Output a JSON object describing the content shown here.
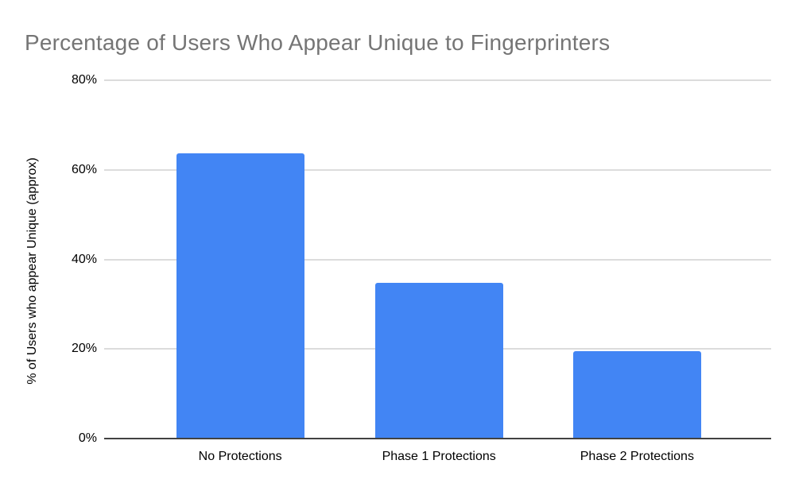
{
  "chart_data": {
    "type": "bar",
    "title": "Percentage of Users Who Appear Unique to Fingerprinters",
    "categories": [
      "No Protections",
      "Phase 1 Protections",
      "Phase 2 Protections"
    ],
    "values": [
      63.7,
      34.7,
      19.6
    ],
    "xlabel": "",
    "ylabel": "% of Users who appear Unique (approx)",
    "ylim": [
      0,
      80
    ],
    "yticks": [
      0,
      20,
      40,
      60,
      80
    ],
    "ytick_labels": [
      "0%",
      "20%",
      "40%",
      "60%",
      "80%"
    ],
    "grid": true,
    "legend_position": "none",
    "bar_color": "#4285f4"
  },
  "colors": {
    "background": "#ffffff",
    "title_text": "#757575",
    "axis_text": "#000000",
    "gridline": "#dcdcdc",
    "axis_line": "#424242"
  }
}
